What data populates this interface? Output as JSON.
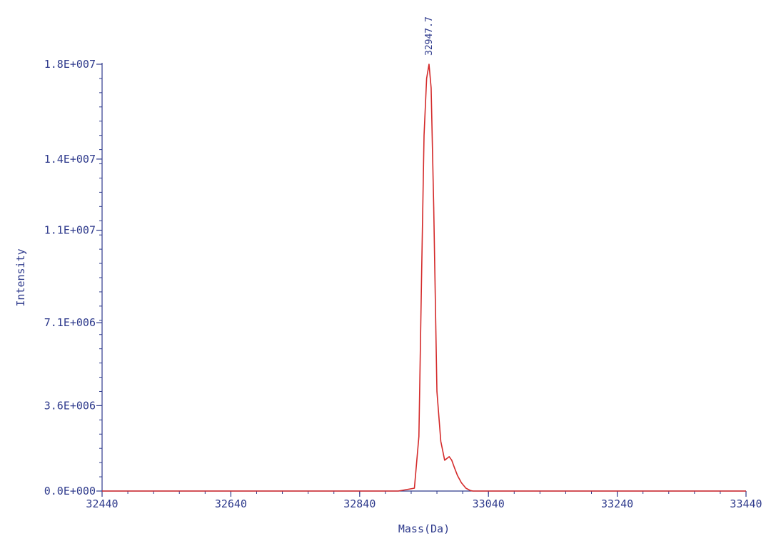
{
  "chart_data": {
    "type": "line",
    "title": "",
    "xlabel": "Mass(Da)",
    "ylabel": "Intensity",
    "xlim": [
      32440,
      33440
    ],
    "ylim": [
      0,
      18000000
    ],
    "x_ticks": [
      32440,
      32640,
      32840,
      33040,
      33240,
      33440
    ],
    "x_tick_labels": [
      "32440",
      "32640",
      "32840",
      "33040",
      "33240",
      "33440"
    ],
    "y_ticks": [
      0,
      3600000,
      7100000,
      11000000,
      14000000,
      18000000
    ],
    "y_tick_labels": [
      "0.0E+000",
      "3.6E+006",
      "7.1E+006",
      "1.1E+007",
      "1.4E+007",
      "1.8E+007"
    ],
    "grid": false,
    "series": [
      {
        "color": "#d42a2a",
        "x": [
          32440,
          32900,
          32925,
          32932,
          32936,
          32940,
          32944,
          32947.7,
          32951,
          32955,
          32960,
          32966,
          32972,
          32979,
          32983,
          32987,
          32992,
          32998,
          33005,
          33012,
          33016,
          33040,
          33440
        ],
        "y": [
          0,
          0,
          120000,
          2300000,
          8800000,
          15000000,
          17400000,
          18000000,
          17000000,
          12000000,
          4200000,
          2100000,
          1300000,
          1450000,
          1300000,
          1000000,
          650000,
          350000,
          120000,
          20000,
          0,
          0,
          0
        ]
      }
    ],
    "annotations": [
      {
        "text": "32947.7",
        "x": 32947.7,
        "y": 18000000
      }
    ]
  },
  "colors": {
    "axis": "#2e3a8c",
    "line": "#d42a2a",
    "background": "#ffffff"
  }
}
